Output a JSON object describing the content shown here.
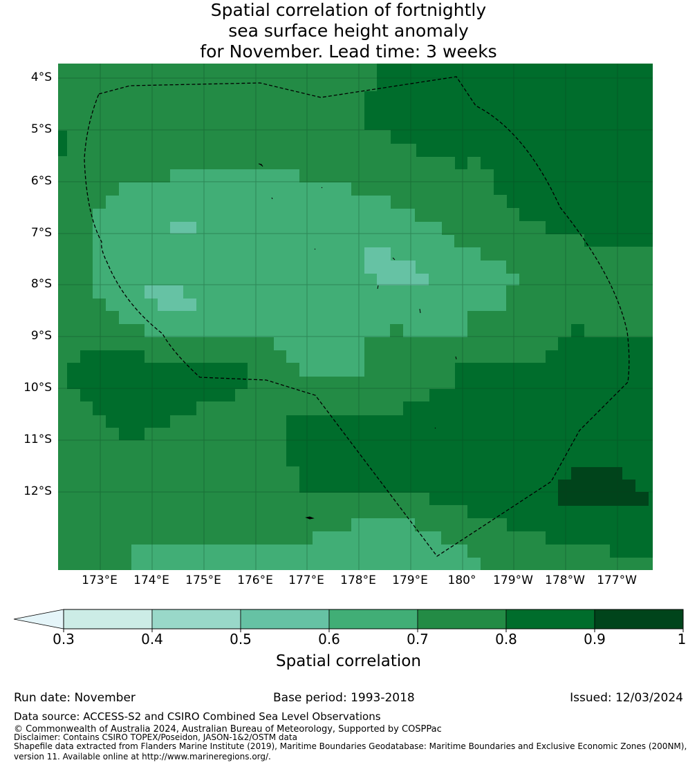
{
  "title": {
    "line1": "Spatial correlation of fortnightly",
    "line2": "sea surface height anomaly",
    "line3": "for November. Lead time: 3 weeks"
  },
  "axes": {
    "lat_labels": [
      "4°S",
      "5°S",
      "6°S",
      "7°S",
      "8°S",
      "9°S",
      "10°S",
      "11°S",
      "12°S"
    ],
    "lon_labels": [
      "173°E",
      "174°E",
      "175°E",
      "176°E",
      "177°E",
      "178°E",
      "179°E",
      "180°",
      "179°W",
      "178°W",
      "177°W"
    ]
  },
  "colorbar": {
    "title": "Spatial correlation",
    "ticks": [
      "0.3",
      "0.4",
      "0.5",
      "0.6",
      "0.7",
      "0.8",
      "0.9",
      "1"
    ],
    "colors": [
      "#ccece6",
      "#99d8c9",
      "#66c2a4",
      "#41ae76",
      "#238b45",
      "#006d2c",
      "#00441b"
    ],
    "under_color": "#e5f5f9"
  },
  "colors": {
    "0.6-0.7": "#41ae76",
    "0.7-0.8": "#238b45",
    "0.8-0.9": "#006d2c",
    "0.9-1": "#00441b",
    "0.5-0.6": "#66c2a4"
  },
  "footer": {
    "run_date": "Run date: November",
    "base_period": "Base period: 1993-2018",
    "issued": "Issued: 12/03/2024",
    "data_source": "Data source: ACCESS-S2 and CSIRO Combined Sea Level Observations",
    "copyright": "© Commonwealth of Australia 2024, Australian Bureau of Meteorology, Supported by COSPPac",
    "disclaimer": "Disclaimer: Contains CSIRO TOPEX/Poseidon, JASON-1&2/OSTM data",
    "shapefile1": "Shapefile data extracted from Flanders Marine Institute (2019), Maritime Boundaries Geodatabase: Maritime Boundaries and Exclusive Economic Zones (200NM),",
    "shapefile2": "version 11. Available online at http://www.marineregions.org/."
  }
}
